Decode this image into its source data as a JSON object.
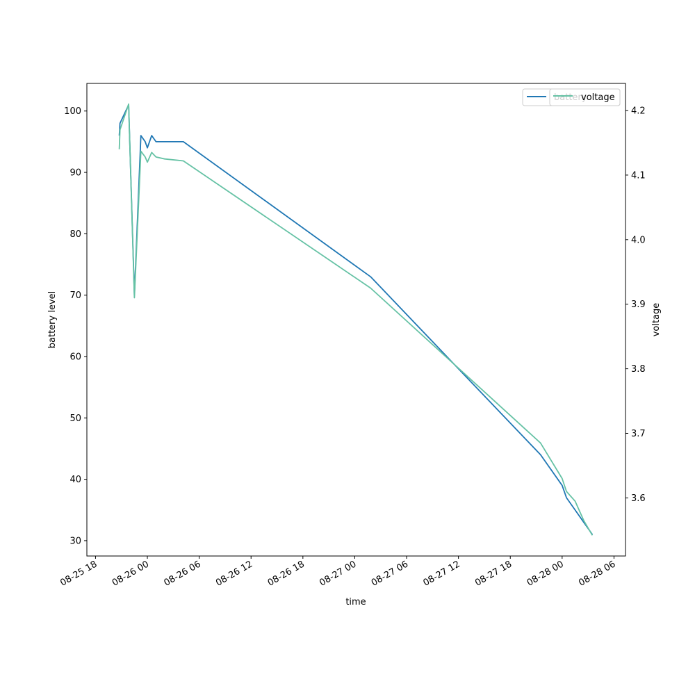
{
  "chart_data": {
    "type": "line",
    "xlabel": "time",
    "ylabel_left": "battery level",
    "ylabel_right": "voltage",
    "x_ticks": [
      "08-25 18",
      "08-26 00",
      "08-26 06",
      "08-26 12",
      "08-26 18",
      "08-27 00",
      "08-27 06",
      "08-27 12",
      "08-27 18",
      "08-28 00",
      "08-28 06"
    ],
    "x_range": [
      "2023-08-25 17:00",
      "2023-08-28 07:20"
    ],
    "y_left_ticks": [
      30,
      40,
      50,
      60,
      70,
      80,
      90,
      100
    ],
    "y_left_range": [
      27.5,
      104.5
    ],
    "y_right_ticks": [
      3.6,
      3.7,
      3.8,
      3.9,
      4.0,
      4.1,
      4.2
    ],
    "y_right_range": [
      3.51,
      4.242
    ],
    "legend_position": "top-right",
    "series": [
      {
        "name": "battery",
        "axis": "left",
        "color": "#1f77b4",
        "points": [
          [
            "2023-08-25 20:45",
            96
          ],
          [
            "2023-08-25 20:50",
            98
          ],
          [
            "2023-08-25 21:50",
            101
          ],
          [
            "2023-08-25 22:30",
            70
          ],
          [
            "2023-08-25 23:15",
            96
          ],
          [
            "2023-08-25 23:45",
            95
          ],
          [
            "2023-08-26 00:00",
            94
          ],
          [
            "2023-08-26 00:30",
            96
          ],
          [
            "2023-08-26 01:00",
            95
          ],
          [
            "2023-08-26 02:00",
            95
          ],
          [
            "2023-08-26 04:10",
            95
          ],
          [
            "2023-08-27 01:50",
            73
          ],
          [
            "2023-08-27 21:30",
            44
          ],
          [
            "2023-08-28 00:00",
            39
          ],
          [
            "2023-08-28 00:30",
            37
          ],
          [
            "2023-08-28 01:30",
            35
          ],
          [
            "2023-08-28 02:30",
            33
          ],
          [
            "2023-08-28 03:30",
            31
          ]
        ]
      },
      {
        "name": "voltage",
        "axis": "right",
        "color": "#66c2a5",
        "points": [
          [
            "2023-08-25 20:45",
            4.14
          ],
          [
            "2023-08-25 20:50",
            4.17
          ],
          [
            "2023-08-25 21:50",
            4.21
          ],
          [
            "2023-08-25 22:30",
            3.91
          ],
          [
            "2023-08-25 23:15",
            4.137
          ],
          [
            "2023-08-25 23:45",
            4.128
          ],
          [
            "2023-08-26 00:00",
            4.12
          ],
          [
            "2023-08-26 00:30",
            4.135
          ],
          [
            "2023-08-26 01:00",
            4.128
          ],
          [
            "2023-08-26 02:00",
            4.125
          ],
          [
            "2023-08-26 04:10",
            4.122
          ],
          [
            "2023-08-27 01:50",
            3.925
          ],
          [
            "2023-08-27 21:30",
            3.685
          ],
          [
            "2023-08-28 00:00",
            3.63
          ],
          [
            "2023-08-28 00:30",
            3.61
          ],
          [
            "2023-08-28 01:30",
            3.595
          ],
          [
            "2023-08-28 02:30",
            3.565
          ],
          [
            "2023-08-28 03:30",
            3.542
          ]
        ]
      }
    ]
  }
}
